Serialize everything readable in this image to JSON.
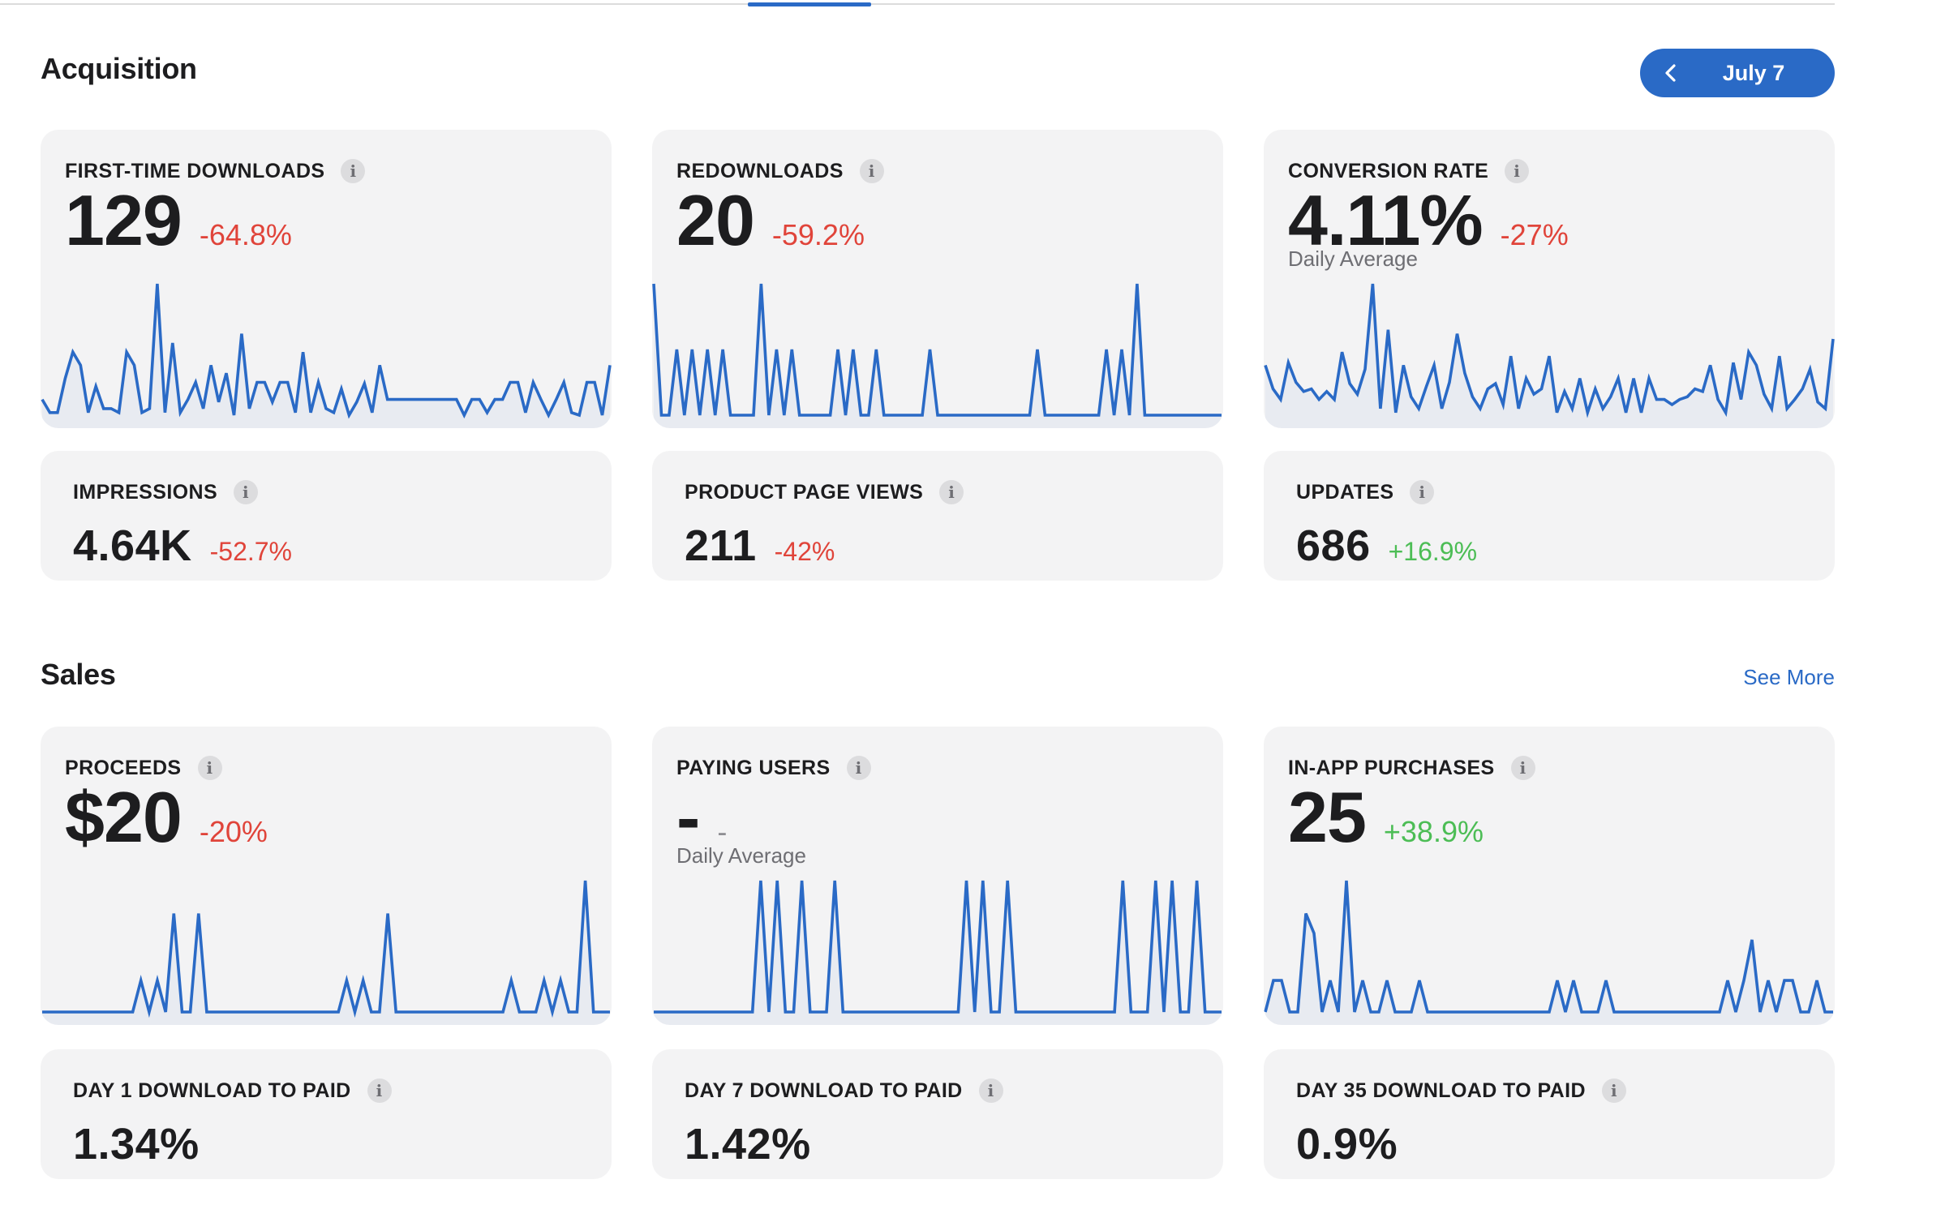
{
  "acquisition": {
    "title": "Acquisition",
    "date_button": {
      "label": "July 7",
      "icon": "chevron-left-icon"
    },
    "cards": {
      "first_time_downloads": {
        "title": "FIRST-TIME DOWNLOADS",
        "value": "129",
        "change": "-64.8%",
        "trend": [
          0.12,
          0.02,
          0.02,
          0.28,
          0.48,
          0.38,
          0.02,
          0.22,
          0.05,
          0.05,
          0.02,
          0.48,
          0.38,
          0.02,
          0.05,
          1.0,
          0.02,
          0.55,
          0.02,
          0.12,
          0.25,
          0.05,
          0.38,
          0.1,
          0.32,
          0.0,
          0.62,
          0.05,
          0.25,
          0.25,
          0.1,
          0.25,
          0.25,
          0.02,
          0.48,
          0.02,
          0.25,
          0.05,
          0.02,
          0.2,
          0.0,
          0.1,
          0.24,
          0.02,
          0.38,
          0.12,
          0.12,
          0.12,
          0.12,
          0.12,
          0.12,
          0.12,
          0.12,
          0.12,
          0.12,
          0.0,
          0.12,
          0.12,
          0.02,
          0.12,
          0.12,
          0.25,
          0.25,
          0.02,
          0.25,
          0.12,
          0.0,
          0.12,
          0.25,
          0.02,
          0.0,
          0.25,
          0.25,
          0.0,
          0.38
        ]
      },
      "redownloads": {
        "title": "REDOWNLOADS",
        "value": "20",
        "change": "-59.2%",
        "trend": [
          1.0,
          0.0,
          0.0,
          0.5,
          0.0,
          0.5,
          0.0,
          0.5,
          0.0,
          0.5,
          0.0,
          0.0,
          0.0,
          0.0,
          1.0,
          0.0,
          0.5,
          0.0,
          0.5,
          0.0,
          0.0,
          0.0,
          0.0,
          0.0,
          0.5,
          0.0,
          0.5,
          0.0,
          0.0,
          0.5,
          0.0,
          0.0,
          0.0,
          0.0,
          0.0,
          0.0,
          0.5,
          0.0,
          0.0,
          0.0,
          0.0,
          0.0,
          0.0,
          0.0,
          0.0,
          0.0,
          0.0,
          0.0,
          0.0,
          0.0,
          0.5,
          0.0,
          0.0,
          0.0,
          0.0,
          0.0,
          0.0,
          0.0,
          0.0,
          0.5,
          0.0,
          0.5,
          0.0,
          1.0,
          0.0,
          0.0,
          0.0,
          0.0,
          0.0,
          0.0,
          0.0,
          0.0,
          0.0,
          0.0,
          0.0
        ]
      },
      "conversion_rate": {
        "title": "CONVERSION RATE",
        "value": "4.11%",
        "change": "-27%",
        "sublabel": "Daily Average",
        "trend": [
          0.38,
          0.2,
          0.12,
          0.4,
          0.25,
          0.18,
          0.2,
          0.12,
          0.18,
          0.12,
          0.48,
          0.24,
          0.16,
          0.35,
          1.0,
          0.05,
          0.65,
          0.02,
          0.38,
          0.14,
          0.05,
          0.22,
          0.38,
          0.05,
          0.25,
          0.62,
          0.32,
          0.14,
          0.05,
          0.2,
          0.24,
          0.08,
          0.45,
          0.05,
          0.28,
          0.16,
          0.2,
          0.45,
          0.02,
          0.18,
          0.05,
          0.28,
          0.02,
          0.2,
          0.05,
          0.14,
          0.28,
          0.02,
          0.28,
          0.02,
          0.28,
          0.12,
          0.12,
          0.08,
          0.12,
          0.14,
          0.2,
          0.18,
          0.38,
          0.12,
          0.02,
          0.4,
          0.12,
          0.48,
          0.38,
          0.16,
          0.05,
          0.45,
          0.05,
          0.12,
          0.2,
          0.35,
          0.1,
          0.05,
          0.58
        ]
      },
      "impressions": {
        "title": "IMPRESSIONS",
        "value": "4.64K",
        "change": "-52.7%"
      },
      "product_page_views": {
        "title": "PRODUCT PAGE VIEWS",
        "value": "211",
        "change": "-42%"
      },
      "updates": {
        "title": "UPDATES",
        "value": "686",
        "change": "+16.9%"
      }
    }
  },
  "sales": {
    "title": "Sales",
    "see_more": "See More",
    "cards": {
      "proceeds": {
        "title": "PROCEEDS",
        "value": "$20",
        "change": "-20%",
        "trend": [
          0,
          0,
          0,
          0,
          0,
          0,
          0,
          0,
          0,
          0,
          0,
          0,
          0.24,
          0,
          0.24,
          0,
          0.75,
          0,
          0,
          0.75,
          0,
          0,
          0,
          0,
          0,
          0,
          0,
          0,
          0,
          0,
          0,
          0,
          0,
          0,
          0,
          0,
          0,
          0.24,
          0,
          0.24,
          0,
          0,
          0.75,
          0,
          0,
          0,
          0,
          0,
          0,
          0,
          0,
          0,
          0,
          0,
          0,
          0,
          0,
          0.24,
          0,
          0,
          0,
          0.24,
          0,
          0.24,
          0,
          0,
          1.0,
          0,
          0,
          0
        ]
      },
      "paying_users": {
        "title": "PAYING USERS",
        "value": "-",
        "change": "-",
        "sublabel": "Daily Average",
        "trend": [
          0,
          0,
          0,
          0,
          0,
          0,
          0,
          0,
          0,
          0,
          0,
          0,
          0,
          1,
          0,
          1,
          0,
          0,
          1,
          0,
          0,
          0,
          1,
          0,
          0,
          0,
          0,
          0,
          0,
          0,
          0,
          0,
          0,
          0,
          0,
          0,
          0,
          0,
          1,
          0,
          1,
          0,
          0,
          1,
          0,
          0,
          0,
          0,
          0,
          0,
          0,
          0,
          0,
          0,
          0,
          0,
          0,
          1,
          0,
          0,
          0,
          1,
          0,
          1,
          0,
          0,
          1,
          0,
          0,
          0
        ]
      },
      "in_app_purchases": {
        "title": "IN-APP PURCHASES",
        "value": "25",
        "change": "+38.9%",
        "trend": [
          0,
          0.24,
          0.24,
          0,
          0,
          0.75,
          0.6,
          0,
          0.24,
          0,
          1.0,
          0,
          0.24,
          0,
          0,
          0.24,
          0,
          0,
          0,
          0.24,
          0,
          0,
          0,
          0,
          0,
          0,
          0,
          0,
          0,
          0,
          0,
          0,
          0,
          0,
          0,
          0,
          0.24,
          0,
          0.24,
          0,
          0,
          0,
          0.24,
          0,
          0,
          0,
          0,
          0,
          0,
          0,
          0,
          0,
          0,
          0,
          0,
          0,
          0,
          0.24,
          0,
          0.24,
          0.55,
          0,
          0.24,
          0,
          0.24,
          0.24,
          0,
          0,
          0.24,
          0,
          0
        ]
      },
      "day1": {
        "title": "DAY 1 DOWNLOAD TO PAID",
        "value": "1.34%"
      },
      "day7": {
        "title": "DAY 7 DOWNLOAD TO PAID",
        "value": "1.42%"
      },
      "day35": {
        "title": "DAY 35 DOWNLOAD TO PAID",
        "value": "0.9%"
      }
    }
  },
  "colors": {
    "accent": "#2a6ac6",
    "negative": "#e0443a",
    "positive": "#4cbd55",
    "card_bg": "#f3f3f4",
    "sparkline": "#2a6ac6"
  },
  "icons": {
    "info": "info-icon"
  }
}
